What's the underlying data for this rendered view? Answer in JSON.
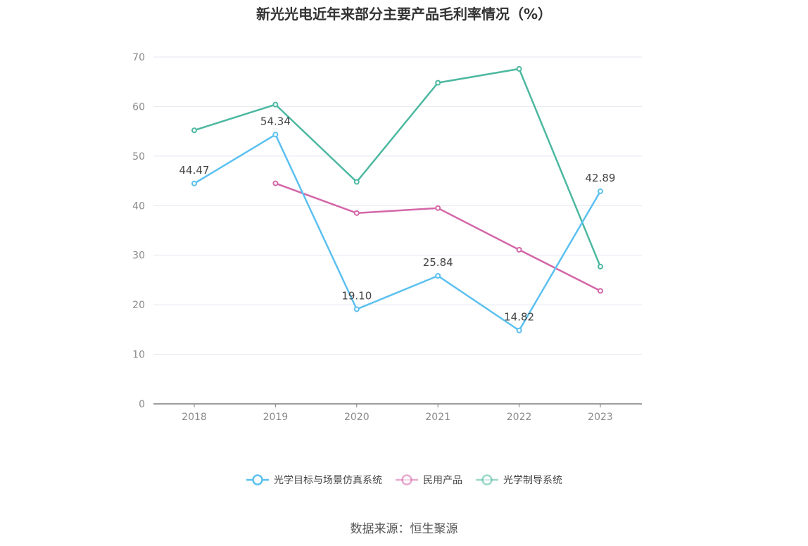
{
  "title": "新光光电近年来部分主要产品毛利率情况（%）",
  "source": "数据来源：恒生聚源",
  "chart_data": {
    "type": "line",
    "title": "新光光电近年来部分主要产品毛利率情况（%）",
    "categories": [
      "2018",
      "2019",
      "2020",
      "2021",
      "2022",
      "2023"
    ],
    "ylim": [
      0,
      70
    ],
    "yticks": [
      "0",
      "10",
      "20",
      "30",
      "40",
      "50",
      "60",
      "70"
    ],
    "grid": true,
    "legend_position": "bottom",
    "series": [
      {
        "name": "光学目标与场景仿真系统",
        "color": "#5bc0f0",
        "values": [
          44.47,
          54.34,
          19.1,
          25.84,
          14.82,
          42.89
        ],
        "labels": [
          "44.47",
          "54.34",
          "19.10",
          "25.84",
          "14.82",
          "42.89"
        ]
      },
      {
        "name": "民用产品",
        "color": "#d466a8",
        "values": [
          null,
          44.5,
          38.5,
          39.5,
          31.1,
          22.8
        ],
        "labels": []
      },
      {
        "name": "光学制导系统",
        "color": "#4cb8a0",
        "values": [
          55.2,
          60.4,
          44.8,
          64.8,
          67.6,
          27.7
        ],
        "labels": []
      }
    ]
  }
}
